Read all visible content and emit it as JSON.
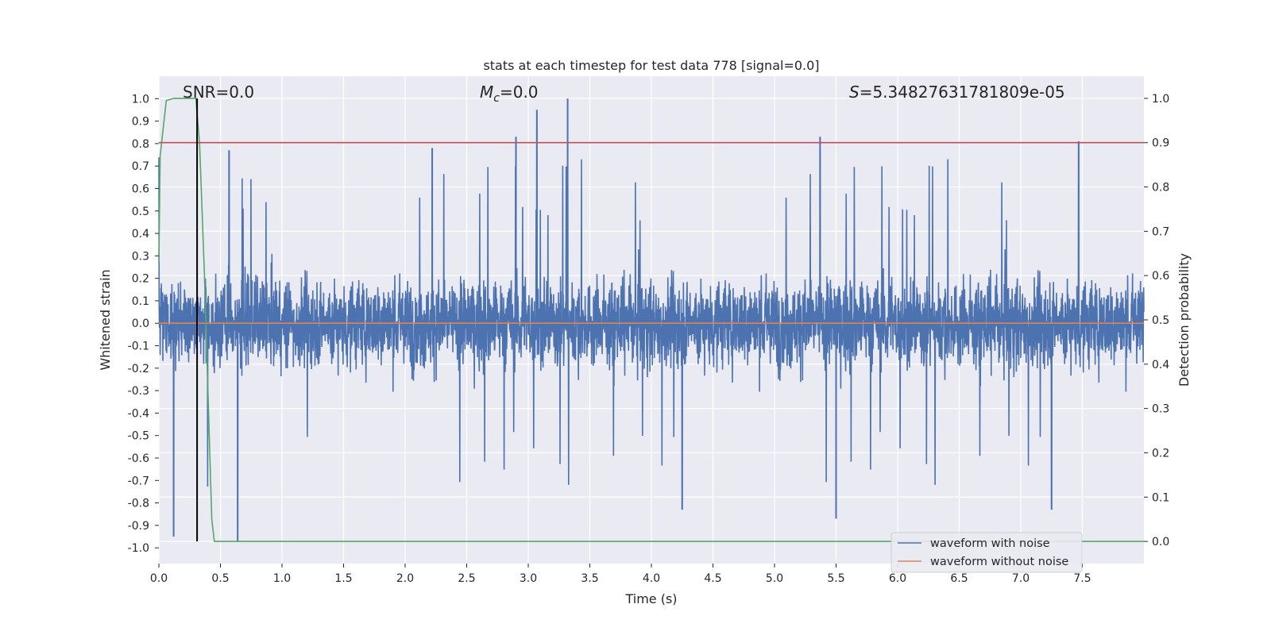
{
  "chart_data": {
    "type": "line",
    "title": "stats at each timestep for test data 778 [signal=0.0]",
    "xlabel": "Time (s)",
    "ylabel": "Whitened strain",
    "y2label": "Detection probability",
    "xlim": [
      0.0,
      8.0
    ],
    "ylim": [
      -1.07,
      1.1
    ],
    "y2lim": [
      -0.05,
      1.05
    ],
    "x_ticks": [
      "0.0",
      "0.5",
      "1.0",
      "1.5",
      "2.0",
      "2.5",
      "3.0",
      "3.5",
      "4.0",
      "4.5",
      "5.0",
      "5.5",
      "6.0",
      "6.5",
      "7.0",
      "7.5"
    ],
    "y_ticks": [
      "1.0",
      "0.9",
      "0.8",
      "0.7",
      "0.6",
      "0.5",
      "0.4",
      "0.3",
      "0.2",
      "0.1",
      "0.0",
      "-0.1",
      "-0.2",
      "-0.3",
      "-0.4",
      "-0.5",
      "-0.6",
      "-0.7",
      "-0.8",
      "-0.9",
      "-1.0"
    ],
    "y2_ticks": [
      "1.0",
      "0.9",
      "0.8",
      "0.7",
      "0.6",
      "0.5",
      "0.4",
      "0.3",
      "0.2",
      "0.1",
      "0.0"
    ],
    "grid": true,
    "legend_position": "bottom-right",
    "annotations": {
      "snr": "SNR=0.0",
      "mc_symbol": "M",
      "mc_sub": "c",
      "mc_value": "=0.0",
      "s_symbol": "S",
      "s_value": "=5.34827631781809e-05"
    },
    "series": [
      {
        "name": "waveform with noise",
        "color": "#4c72b0",
        "axis": "left",
        "description_envelope": "dense noise roughly within ±0.3 with spikes",
        "peaks": [
          {
            "x": 2.9,
            "y": 0.83
          },
          {
            "x": 3.07,
            "y": 0.95
          },
          {
            "x": 3.32,
            "y": 1.0
          },
          {
            "x": 5.37,
            "y": 0.83
          },
          {
            "x": 7.47,
            "y": 0.81
          },
          {
            "x": 0.57,
            "y": 0.77
          },
          {
            "x": 2.22,
            "y": 0.78
          },
          {
            "x": 0.12,
            "y": -0.95
          },
          {
            "x": 0.64,
            "y": -0.97
          },
          {
            "x": 5.5,
            "y": -0.87
          },
          {
            "x": 4.25,
            "y": -0.83
          },
          {
            "x": 7.25,
            "y": -0.83
          }
        ]
      },
      {
        "name": "waveform without noise",
        "color": "#dd8452",
        "axis": "left",
        "x": [
          0.0,
          8.0
        ],
        "y": [
          0.0,
          0.0
        ]
      },
      {
        "color": "#55a868",
        "axis": "right",
        "x": [
          0.0,
          0.01,
          0.06,
          0.12,
          0.2,
          0.3,
          0.33,
          0.37,
          0.43,
          0.45,
          8.0
        ],
        "y": [
          0.63,
          0.87,
          0.995,
          1.0,
          1.0,
          1.0,
          0.9,
          0.6,
          0.05,
          0.0,
          0.0
        ]
      },
      {
        "color": "#c44e52",
        "axis": "right",
        "x": [
          0.0,
          8.0
        ],
        "y": [
          0.9,
          0.9
        ]
      },
      {
        "color": "#000000",
        "axis": "right",
        "x": [
          0.31,
          0.31
        ],
        "y": [
          0.0,
          1.0
        ]
      }
    ]
  }
}
